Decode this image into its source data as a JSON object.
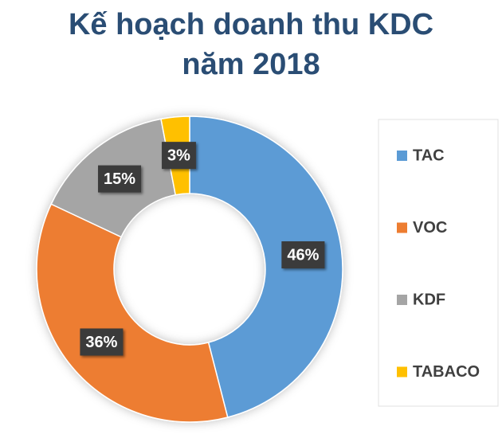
{
  "chart_data": {
    "type": "donut",
    "title": "Kế hoạch doanh thu KDC năm 2018",
    "categories": [
      "TAC",
      "VOC",
      "KDF",
      "TABACO"
    ],
    "values": [
      46,
      36,
      15,
      3
    ],
    "value_labels": [
      "46%",
      "36%",
      "15%",
      "3%"
    ],
    "colors": [
      "#5b9bd5",
      "#ed7d31",
      "#a5a5a5",
      "#ffc000"
    ],
    "legend": "right"
  }
}
